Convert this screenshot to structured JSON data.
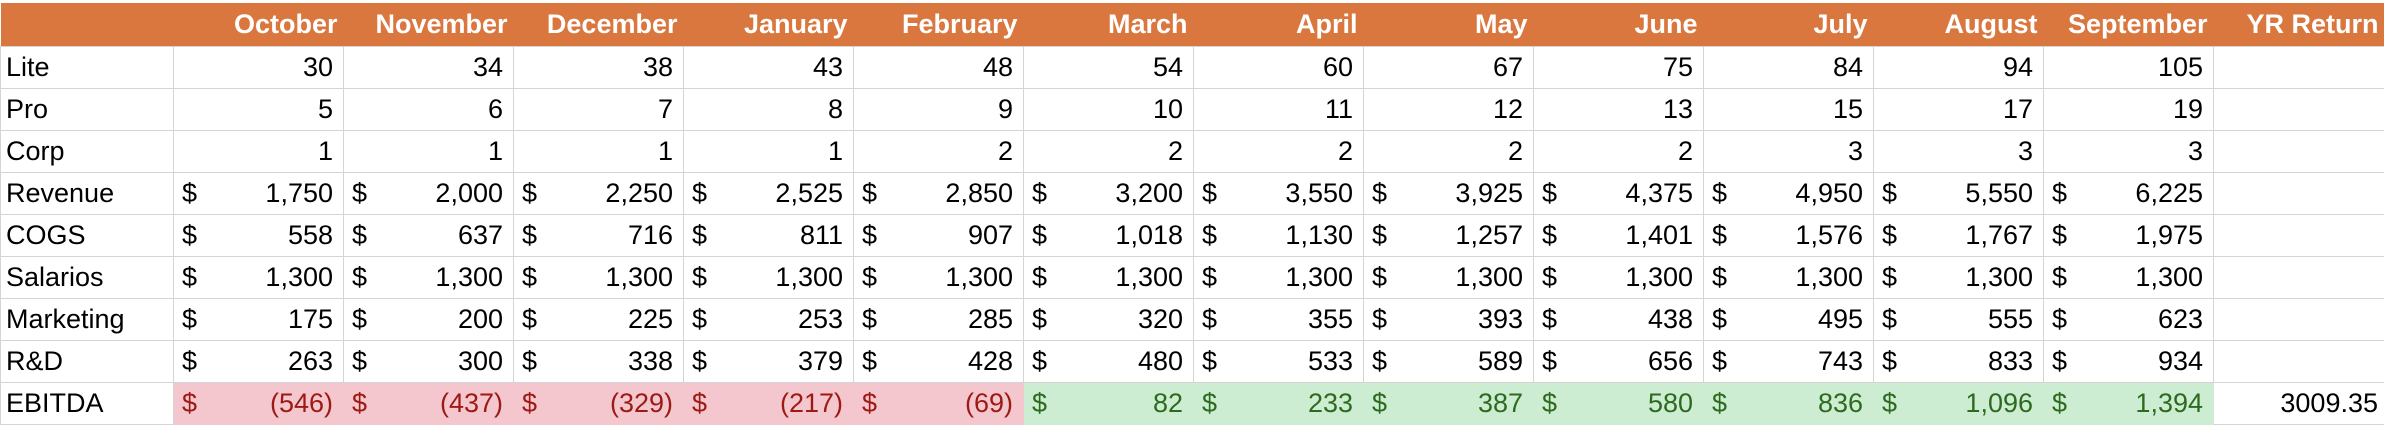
{
  "header": {
    "columns": [
      "",
      "October",
      "November",
      "December",
      "January",
      "February",
      "March",
      "April",
      "May",
      "June",
      "July",
      "August",
      "September",
      "YR Return"
    ]
  },
  "colors": {
    "header_bg": "#D9773F",
    "negative_fill": "#F4C7CE",
    "negative_text": "#9C1A13",
    "positive_fill": "#CDEDD2",
    "positive_text": "#2D6A1E"
  },
  "rows": [
    {
      "label": "Lite",
      "currency": false,
      "values": [
        "30",
        "34",
        "38",
        "43",
        "48",
        "54",
        "60",
        "67",
        "75",
        "84",
        "94",
        "105"
      ],
      "yr_return": ""
    },
    {
      "label": "Pro",
      "currency": false,
      "values": [
        "5",
        "6",
        "7",
        "8",
        "9",
        "10",
        "11",
        "12",
        "13",
        "15",
        "17",
        "19"
      ],
      "yr_return": ""
    },
    {
      "label": "Corp",
      "currency": false,
      "values": [
        "1",
        "1",
        "1",
        "1",
        "2",
        "2",
        "2",
        "2",
        "2",
        "3",
        "3",
        "3"
      ],
      "yr_return": ""
    },
    {
      "label": "Revenue",
      "currency": true,
      "values": [
        "1,750",
        "2,000",
        "2,250",
        "2,525",
        "2,850",
        "3,200",
        "3,550",
        "3,925",
        "4,375",
        "4,950",
        "5,550",
        "6,225"
      ],
      "yr_return": ""
    },
    {
      "label": "COGS",
      "currency": true,
      "values": [
        "558",
        "637",
        "716",
        "811",
        "907",
        "1,018",
        "1,130",
        "1,257",
        "1,401",
        "1,576",
        "1,767",
        "1,975"
      ],
      "yr_return": ""
    },
    {
      "label": "Salarios",
      "currency": true,
      "values": [
        "1,300",
        "1,300",
        "1,300",
        "1,300",
        "1,300",
        "1,300",
        "1,300",
        "1,300",
        "1,300",
        "1,300",
        "1,300",
        "1,300"
      ],
      "yr_return": ""
    },
    {
      "label": "Marketing",
      "currency": true,
      "values": [
        "175",
        "200",
        "225",
        "253",
        "285",
        "320",
        "355",
        "393",
        "438",
        "495",
        "555",
        "623"
      ],
      "yr_return": ""
    },
    {
      "label": "R&D",
      "currency": true,
      "values": [
        "263",
        "300",
        "338",
        "379",
        "428",
        "480",
        "533",
        "589",
        "656",
        "743",
        "833",
        "934"
      ],
      "yr_return": ""
    },
    {
      "label": "EBITDA",
      "currency": true,
      "values": [
        "(546)",
        "(437)",
        "(329)",
        "(217)",
        "(69)",
        "82",
        "233",
        "387",
        "580",
        "836",
        "1,096",
        "1,394"
      ],
      "yr_return": "3009.35"
    }
  ],
  "currency_symbol": "$"
}
